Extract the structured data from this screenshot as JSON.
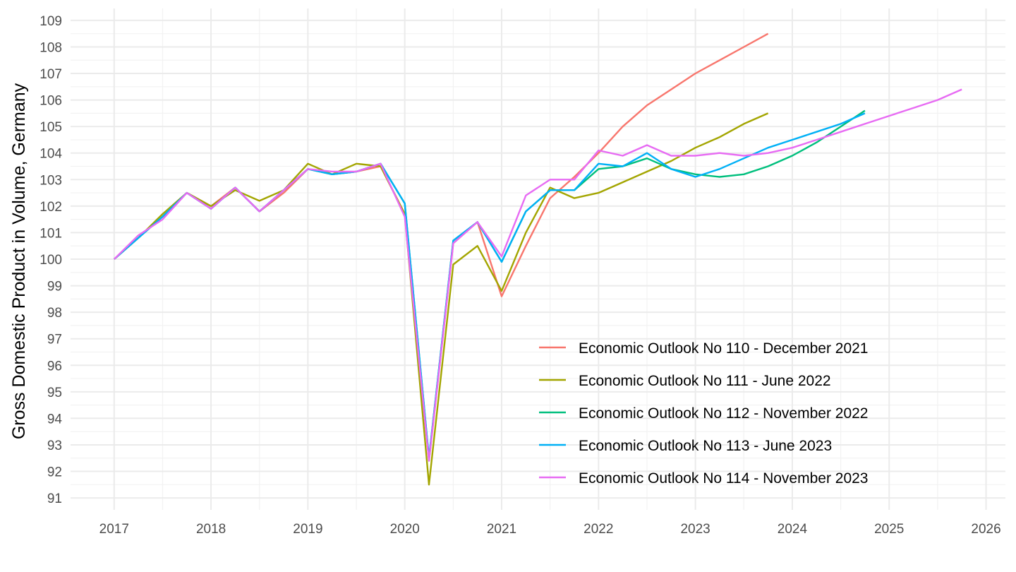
{
  "chart_data": {
    "type": "line",
    "title": "",
    "xlabel": "",
    "ylabel": "Gross Domestic Product in Volume, Germany",
    "xlim": [
      2016.55,
      2026.2
    ],
    "ylim": [
      90.55,
      109.45
    ],
    "xticks": [
      2017,
      2018,
      2019,
      2020,
      2021,
      2022,
      2023,
      2024,
      2025,
      2026
    ],
    "xtick_labels": [
      "2017",
      "2018",
      "2019",
      "2020",
      "2021",
      "2022",
      "2023",
      "2024",
      "2025",
      "2026"
    ],
    "yticks": [
      91,
      92,
      93,
      94,
      95,
      96,
      97,
      98,
      99,
      100,
      101,
      102,
      103,
      104,
      105,
      106,
      107,
      108,
      109
    ],
    "ytick_labels": [
      "91",
      "92",
      "93",
      "94",
      "95",
      "96",
      "97",
      "98",
      "99",
      "100",
      "101",
      "102",
      "103",
      "104",
      "105",
      "106",
      "107",
      "108",
      "109"
    ],
    "grid": true,
    "legend_position": "inside-bottom-right",
    "series": [
      {
        "name": "Economic Outlook No 110 - December 2021",
        "color": "#F8766D",
        "x": [
          2017,
          2017.25,
          2017.5,
          2017.75,
          2018,
          2018.25,
          2018.5,
          2018.75,
          2019,
          2019.25,
          2019.5,
          2019.75,
          2020,
          2020.25,
          2020.5,
          2020.75,
          2021,
          2021.25,
          2021.5,
          2021.75,
          2022,
          2022.25,
          2022.5,
          2022.75,
          2023,
          2023.25,
          2023.5,
          2023.75
        ],
        "y": [
          100.0,
          100.8,
          101.6,
          102.5,
          102.0,
          102.7,
          101.8,
          102.5,
          103.4,
          103.2,
          103.3,
          103.5,
          101.7,
          92.4,
          100.6,
          101.4,
          98.6,
          100.5,
          102.3,
          103.1,
          104.0,
          105.0,
          105.8,
          106.4,
          107.0,
          107.5,
          108.0,
          108.5
        ]
      },
      {
        "name": "Economic Outlook No 111 - June 2022",
        "color": "#A3A500",
        "x": [
          2017,
          2017.25,
          2017.5,
          2017.75,
          2018,
          2018.25,
          2018.5,
          2018.75,
          2019,
          2019.25,
          2019.5,
          2019.75,
          2020,
          2020.25,
          2020.5,
          2020.75,
          2021,
          2021.25,
          2021.5,
          2021.75,
          2022,
          2022.25,
          2022.5,
          2022.75,
          2023,
          2023.25,
          2023.5,
          2023.75
        ],
        "y": [
          100.0,
          100.8,
          101.7,
          102.5,
          102.0,
          102.6,
          102.2,
          102.6,
          103.6,
          103.2,
          103.6,
          103.5,
          101.7,
          91.5,
          99.8,
          100.5,
          98.8,
          101.0,
          102.7,
          102.3,
          102.5,
          102.9,
          103.3,
          103.7,
          104.2,
          104.6,
          105.1,
          105.5
        ]
      },
      {
        "name": "Economic Outlook No 112 - November 2022",
        "color": "#00BF7D",
        "x": [
          2017,
          2017.25,
          2017.5,
          2017.75,
          2018,
          2018.25,
          2018.5,
          2018.75,
          2019,
          2019.25,
          2019.5,
          2019.75,
          2020,
          2020.25,
          2020.5,
          2020.75,
          2021,
          2021.25,
          2021.5,
          2021.75,
          2022,
          2022.25,
          2022.5,
          2022.75,
          2023,
          2023.25,
          2023.5,
          2023.75,
          2024,
          2024.25,
          2024.5,
          2024.75
        ],
        "y": [
          100.0,
          100.8,
          101.6,
          102.5,
          101.9,
          102.7,
          101.8,
          102.6,
          103.4,
          103.2,
          103.3,
          103.6,
          102.1,
          92.5,
          100.7,
          101.4,
          99.9,
          101.8,
          102.6,
          102.6,
          103.4,
          103.5,
          103.8,
          103.4,
          103.2,
          103.1,
          103.2,
          103.5,
          103.9,
          104.4,
          105.0,
          105.6
        ]
      },
      {
        "name": "Economic Outlook No 113 - June 2023",
        "color": "#00B0F6",
        "x": [
          2017,
          2017.25,
          2017.5,
          2017.75,
          2018,
          2018.25,
          2018.5,
          2018.75,
          2019,
          2019.25,
          2019.5,
          2019.75,
          2020,
          2020.25,
          2020.5,
          2020.75,
          2021,
          2021.25,
          2021.5,
          2021.75,
          2022,
          2022.25,
          2022.5,
          2022.75,
          2023,
          2023.25,
          2023.5,
          2023.75,
          2024,
          2024.25,
          2024.5,
          2024.75
        ],
        "y": [
          100.0,
          100.8,
          101.6,
          102.5,
          101.9,
          102.7,
          101.8,
          102.6,
          103.4,
          103.2,
          103.3,
          103.6,
          102.1,
          92.5,
          100.7,
          101.4,
          99.9,
          101.8,
          102.6,
          102.6,
          103.6,
          103.5,
          104.0,
          103.4,
          103.1,
          103.4,
          103.8,
          104.2,
          104.5,
          104.8,
          105.1,
          105.5
        ]
      },
      {
        "name": "Economic Outlook No 114 - November 2023",
        "color": "#E76BF3",
        "x": [
          2017,
          2017.25,
          2017.5,
          2017.75,
          2018,
          2018.25,
          2018.5,
          2018.75,
          2019,
          2019.25,
          2019.5,
          2019.75,
          2020,
          2020.25,
          2020.5,
          2020.75,
          2021,
          2021.25,
          2021.5,
          2021.75,
          2022,
          2022.25,
          2022.5,
          2022.75,
          2023,
          2023.25,
          2023.5,
          2023.75,
          2024,
          2024.25,
          2024.5,
          2024.75,
          2025,
          2025.25,
          2025.5,
          2025.75
        ],
        "y": [
          100.0,
          100.9,
          101.5,
          102.5,
          101.9,
          102.7,
          101.8,
          102.6,
          103.4,
          103.3,
          103.3,
          103.6,
          101.6,
          92.4,
          100.6,
          101.4,
          100.1,
          102.4,
          103.0,
          103.0,
          104.1,
          103.9,
          104.3,
          103.9,
          103.9,
          104.0,
          103.9,
          104.0,
          104.2,
          104.5,
          104.8,
          105.1,
          105.4,
          105.7,
          106.0,
          106.4
        ]
      }
    ]
  }
}
